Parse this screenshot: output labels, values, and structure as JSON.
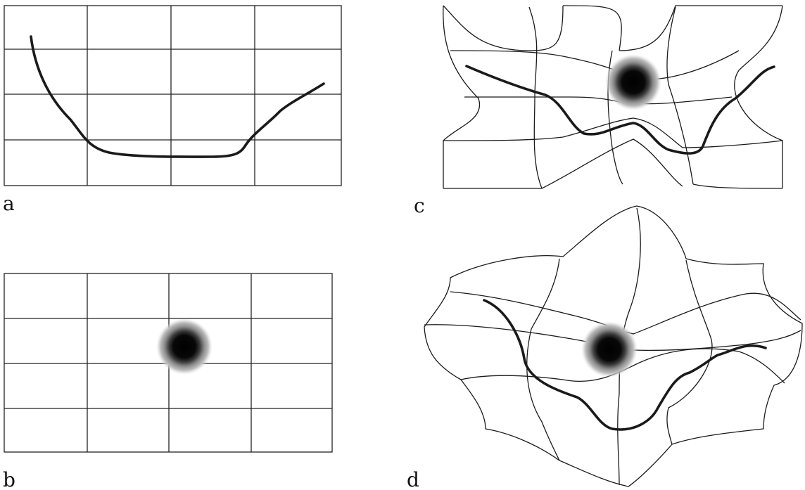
{
  "panels": [
    {
      "label": "a"
    },
    {
      "label": "b"
    },
    {
      "label": "c"
    },
    {
      "label": "d"
    }
  ],
  "colors": {
    "ink": "#1a1a1a",
    "halo_outer": "#c4c4c4",
    "halo_mid": "#8a8a8a",
    "mass_core": "#0a0a0a"
  }
}
